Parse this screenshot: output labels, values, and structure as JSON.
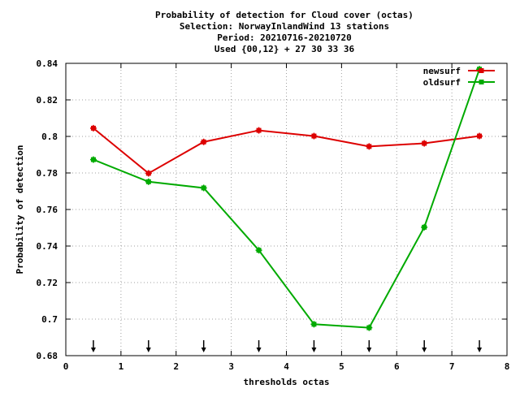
{
  "chart_data": {
    "type": "line",
    "title_lines": [
      "Probability of detection  for Cloud cover (octas)",
      "Selection: NorwayInlandWind     13 stations",
      "Period: 20210716-20210720",
      "Used {00,12} + 27 30 33 36"
    ],
    "xlabel": "thresholds octas",
    "ylabel": "Probability of detection",
    "xlim": [
      0,
      8
    ],
    "ylim": [
      0.68,
      0.84
    ],
    "xticks": [
      "0",
      "1",
      "2",
      "3",
      "4",
      "5",
      "6",
      "7",
      "8"
    ],
    "yticks": [
      "0.68",
      "0.7",
      "0.72",
      "0.74",
      "0.76",
      "0.78",
      "0.8",
      "0.82",
      "0.84"
    ],
    "grid": true,
    "legend_position": "top-right",
    "x": [
      0.5,
      1.5,
      2.5,
      3.5,
      4.5,
      5.5,
      6.5,
      7.5
    ],
    "arrow_markers_x": [
      0.5,
      1.5,
      2.5,
      3.5,
      4.5,
      5.5,
      6.5,
      7.5
    ],
    "series": [
      {
        "name": "newsurf",
        "color": "#dd0000",
        "values": [
          0.8045,
          0.7798,
          0.797,
          0.8033,
          0.8002,
          0.7945,
          0.7962,
          0.8002
        ]
      },
      {
        "name": "oldsurf",
        "color": "#00aa00",
        "values": [
          0.7873,
          0.7752,
          0.7718,
          0.7377,
          0.6972,
          0.6953,
          0.7503,
          0.8368
        ]
      }
    ]
  }
}
